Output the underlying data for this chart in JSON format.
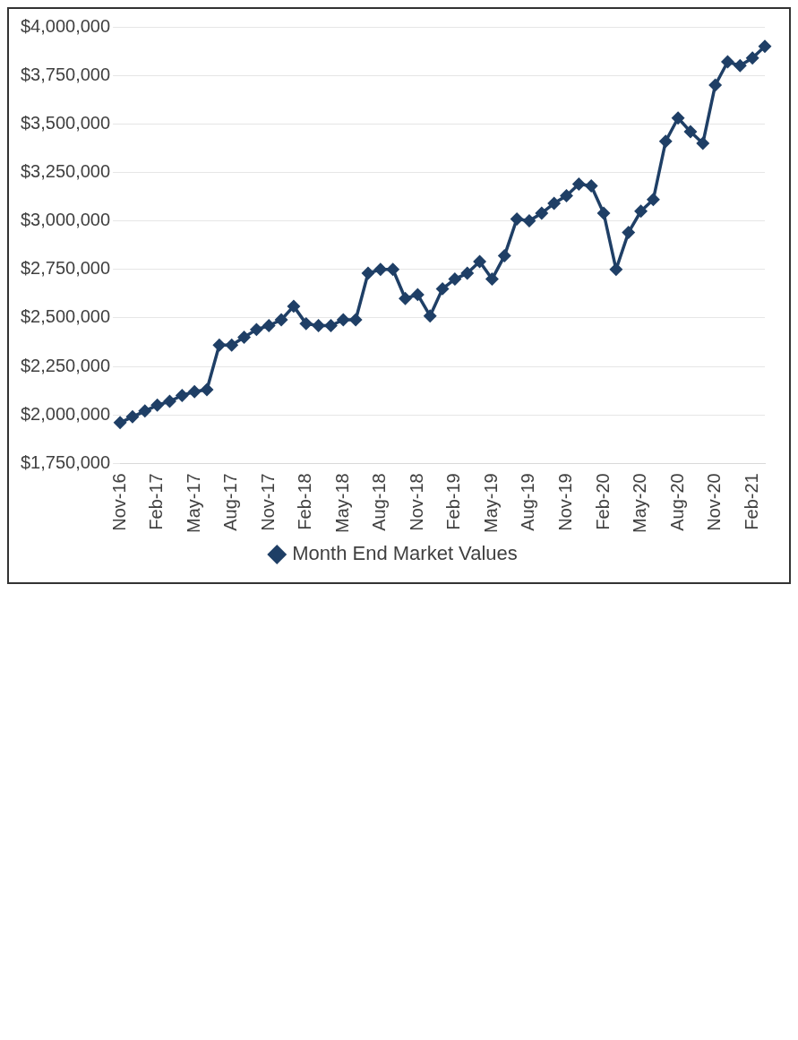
{
  "chart_data": {
    "type": "line",
    "categories": [
      "Nov-16",
      null,
      null,
      "Feb-17",
      null,
      null,
      "May-17",
      null,
      null,
      "Aug-17",
      null,
      null,
      "Nov-17",
      null,
      null,
      "Feb-18",
      null,
      null,
      "May-18",
      null,
      null,
      "Aug-18",
      null,
      null,
      "Nov-18",
      null,
      null,
      "Feb-19",
      null,
      null,
      "May-19",
      null,
      null,
      "Aug-19",
      null,
      null,
      "Nov-19",
      null,
      null,
      "Feb-20",
      null,
      null,
      "May-20",
      null,
      null,
      "Aug-20",
      null,
      null,
      "Nov-20",
      null,
      null,
      "Feb-21",
      null
    ],
    "series": [
      {
        "name": "Month End Market Values",
        "color": "#1f3f66",
        "values": [
          1960000,
          1990000,
          2020000,
          2050000,
          2070000,
          2100000,
          2120000,
          2130000,
          2360000,
          2360000,
          2400000,
          2440000,
          2460000,
          2490000,
          2560000,
          2470000,
          2460000,
          2460000,
          2490000,
          2490000,
          2730000,
          2750000,
          2750000,
          2600000,
          2620000,
          2510000,
          2650000,
          2700000,
          2730000,
          2790000,
          2700000,
          2820000,
          3010000,
          3000000,
          3040000,
          3090000,
          3130000,
          3190000,
          3180000,
          3040000,
          2750000,
          2940000,
          3050000,
          3110000,
          3410000,
          3530000,
          3460000,
          3400000,
          3700000,
          3820000,
          3800000,
          3840000,
          3900000
        ]
      }
    ],
    "ylim": [
      1750000,
      4000000
    ],
    "yticks": [
      {
        "value": 1750000,
        "label": "$1,750,000"
      },
      {
        "value": 2000000,
        "label": "$2,000,000"
      },
      {
        "value": 2250000,
        "label": "$2,250,000"
      },
      {
        "value": 2500000,
        "label": "$2,500,000"
      },
      {
        "value": 2750000,
        "label": "$2,750,000"
      },
      {
        "value": 3000000,
        "label": "$3,000,000"
      },
      {
        "value": 3250000,
        "label": "$3,250,000"
      },
      {
        "value": 3500000,
        "label": "$3,500,000"
      },
      {
        "value": 3750000,
        "label": "$3,750,000"
      },
      {
        "value": 4000000,
        "label": "$4,000,000"
      }
    ],
    "grid": "y",
    "legend": "bottom",
    "marker": "diamond",
    "line_style": "solid"
  }
}
